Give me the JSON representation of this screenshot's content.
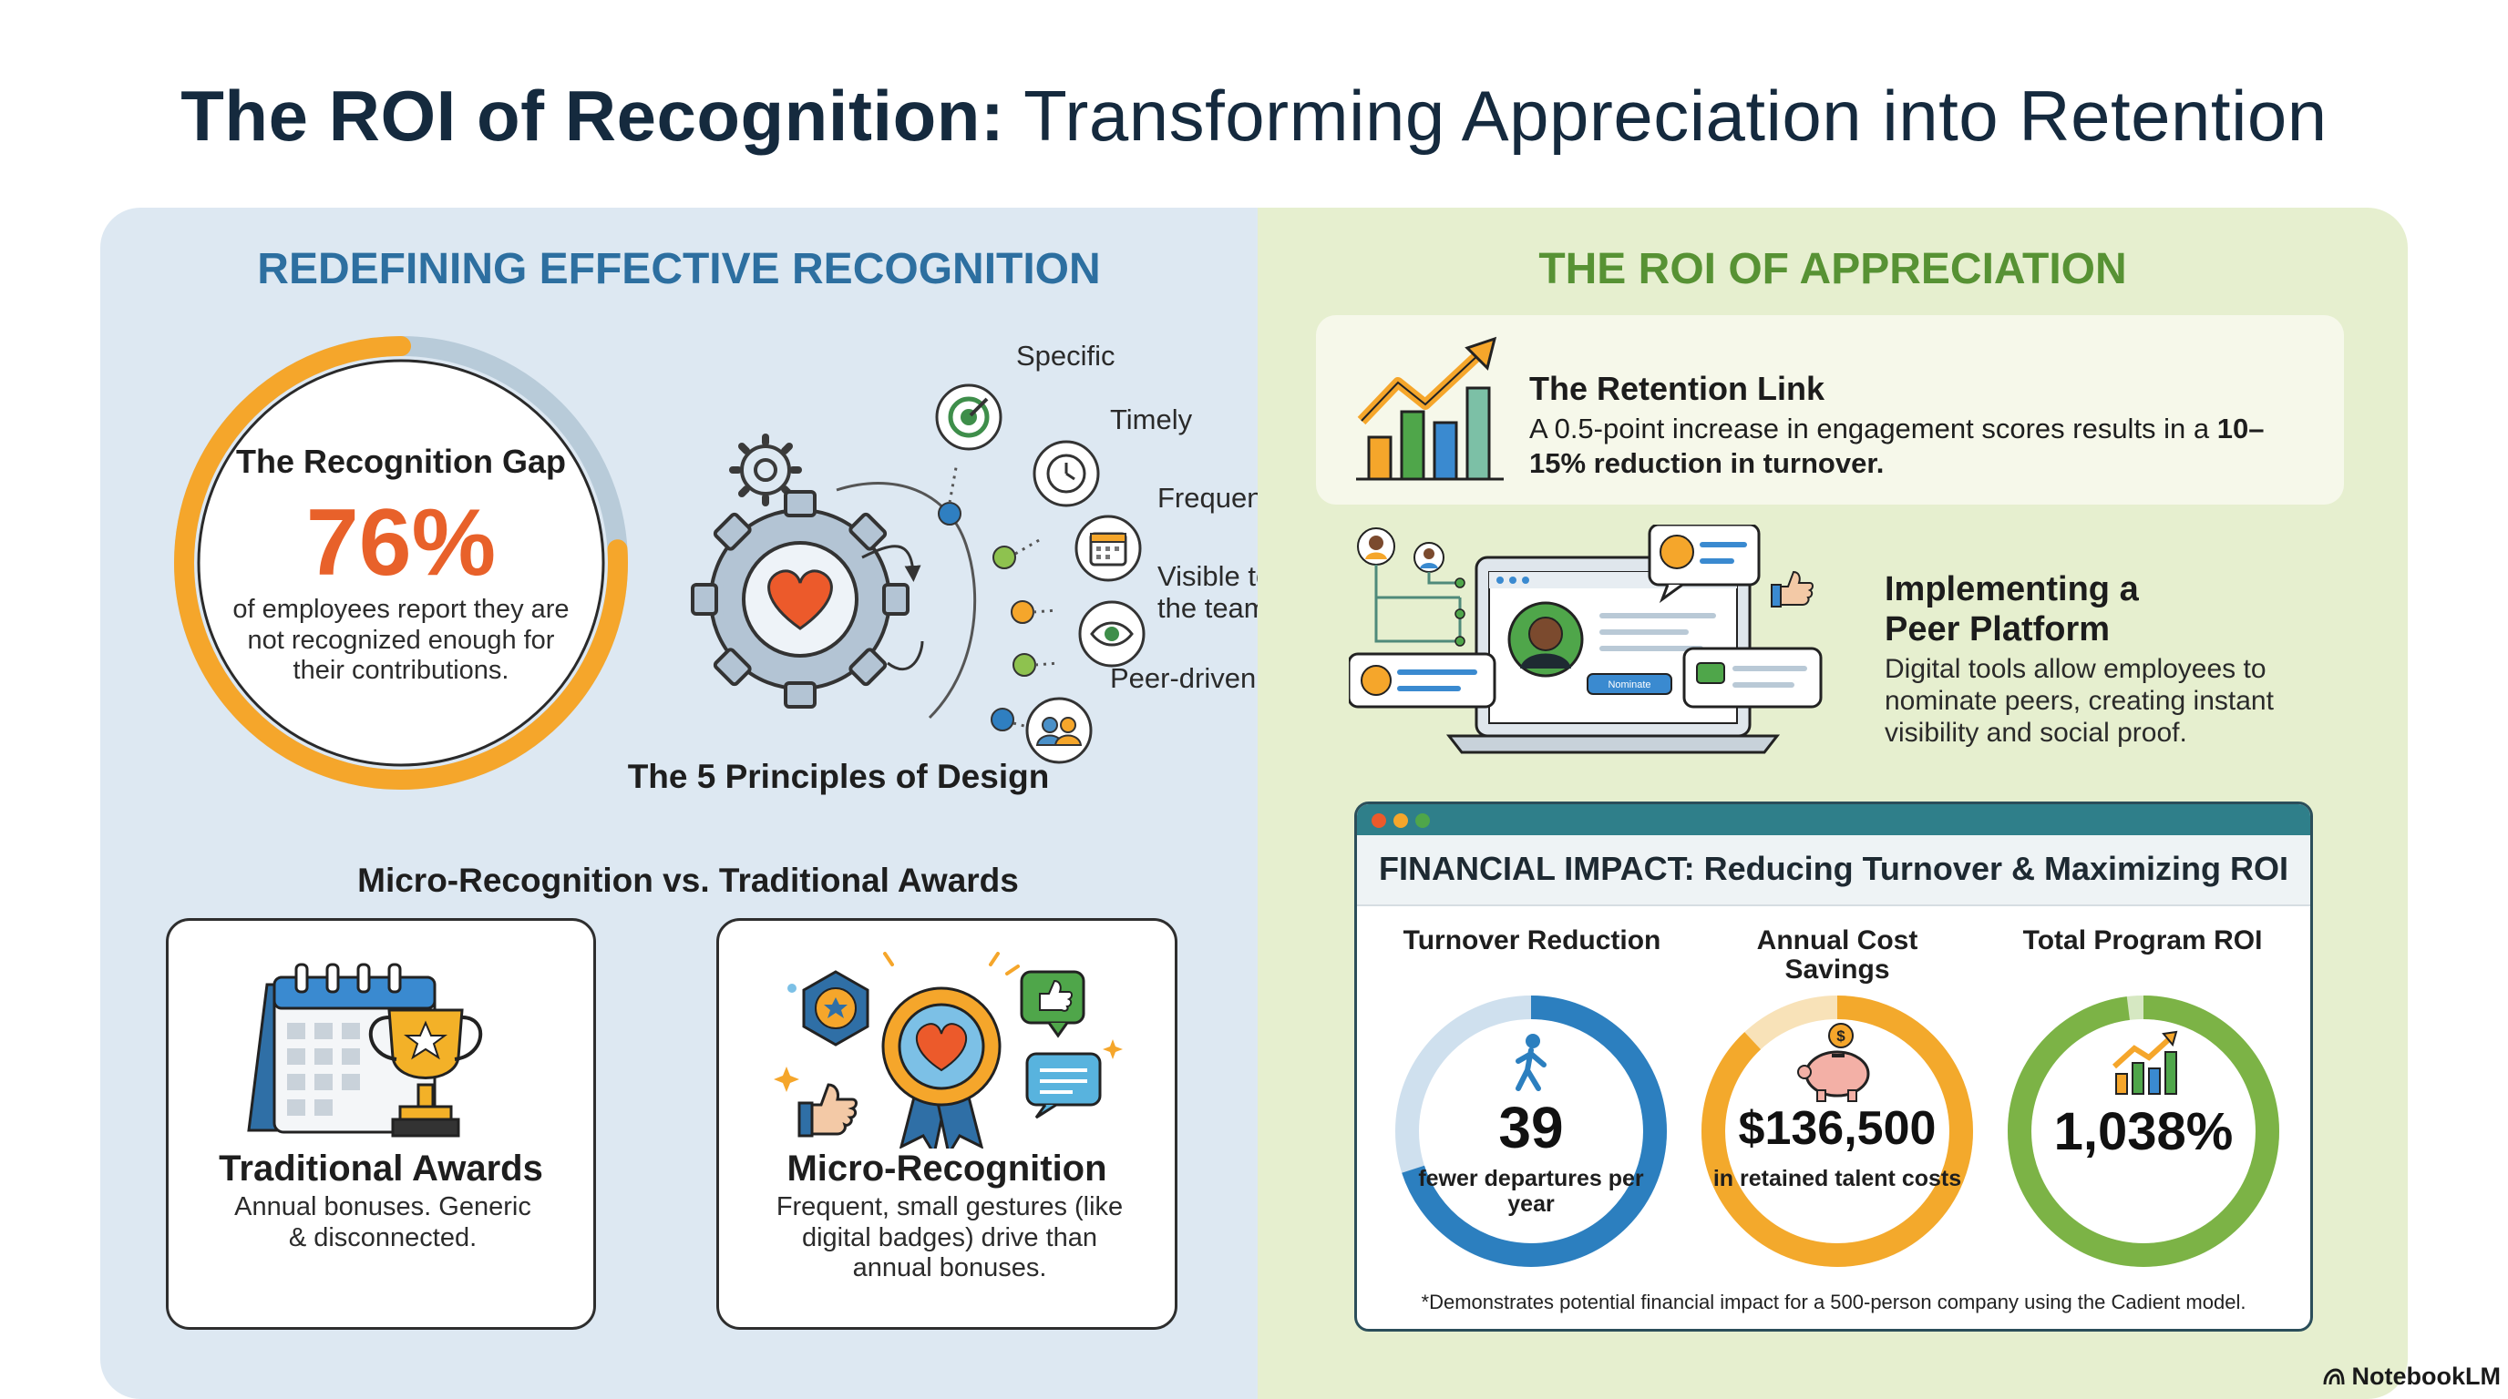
{
  "title": {
    "bold": "The ROI of Recognition:",
    "regular": "Transforming Appreciation into Retention"
  },
  "left": {
    "section_title": "REDEFINING EFFECTIVE RECOGNITION",
    "gap": {
      "heading": "The Recognition Gap",
      "percent": "76%",
      "percent_value": 76,
      "caption": "of employees report they are not recognized enough for their contributions."
    },
    "principles": {
      "items": [
        "Specific",
        "Timely",
        "Frequent",
        "Visible to the team",
        "Peer-driven"
      ],
      "caption": "The 5 Principles of Design"
    },
    "comparison_title": "Micro-Recognition vs. Traditional Awards",
    "traditional": {
      "title": "Traditional Awards",
      "desc": "Annual bonuses. Generic & disconnected."
    },
    "micro": {
      "title": "Micro-Recognition",
      "desc": "Frequent, small gestures (like digital badges) drive than annual bonuses."
    }
  },
  "right": {
    "section_title": "THE ROI OF APPRECIATION",
    "retention": {
      "title": "The Retention Link",
      "desc_plain": "A 0.5-point increase in engagement scores results in a ",
      "desc_bold": "10–15% reduction in turnover."
    },
    "platform": {
      "title": "Implementing a Peer Platform",
      "desc": "Digital tools allow employees to nominate peers, creating instant visibility and social proof.",
      "button_text": "Nominate"
    },
    "financial": {
      "title": "FINANCIAL IMPACT: Reducing Turnover & Maximizing ROI",
      "metrics": [
        {
          "label": "Turnover Reduction",
          "value": "39",
          "sub": "fewer departures per year",
          "color": "#2c7fbf",
          "track": "#cfe0ee",
          "fill_fraction": 0.7
        },
        {
          "label": "Annual Cost Savings",
          "value": "$136,500",
          "sub": "in retained talent costs",
          "color": "#f3a92c",
          "track": "#f8e2b8",
          "fill_fraction": 0.88
        },
        {
          "label": "Total Program ROI",
          "value": "1,038%",
          "sub": "",
          "color": "#7cb346",
          "track": "#d6e8c2",
          "fill_fraction": 0.98
        }
      ],
      "footnote": "*Demonstrates potential financial impact for a 500-person company using the Cadient model."
    }
  },
  "brand": "NotebookLM",
  "colors": {
    "orange": "#e8612a",
    "blue_title": "#2d6fa0",
    "green_title": "#579234",
    "ring_orange": "#f5a62b"
  }
}
